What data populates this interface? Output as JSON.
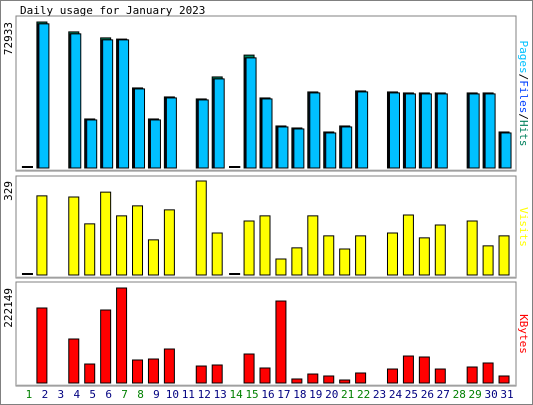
{
  "title": "Daily usage for January 2023",
  "chart_data": [
    {
      "type": "bar",
      "ylim": [
        0,
        72933
      ],
      "yticks": [
        72933
      ],
      "zero_marker": true,
      "separator": "/",
      "separator_color": "#000000",
      "series": [
        {
          "name": "Pages",
          "color": "#00c0ff",
          "values": [
            0,
            72000,
            null,
            67000,
            24000,
            64000,
            64000,
            39500,
            24000,
            35000,
            null,
            34000,
            44500,
            0,
            55000,
            34500,
            20500,
            19500,
            37500,
            17500,
            20500,
            38000,
            null,
            37500,
            37000,
            37000,
            37000,
            null,
            37000,
            37000,
            17500
          ]
        },
        {
          "name": "Files",
          "color": "#0040ff",
          "values": [
            0,
            72000,
            null,
            67000,
            24000,
            64000,
            64000,
            39500,
            24000,
            35000,
            null,
            34000,
            44500,
            0,
            55000,
            34500,
            20500,
            19500,
            37500,
            17500,
            20500,
            38000,
            null,
            37500,
            37000,
            37000,
            37000,
            null,
            37000,
            37000,
            17500
          ]
        },
        {
          "name": "Hits",
          "color": "#00805c",
          "values": [
            0,
            72933,
            null,
            68000,
            24500,
            65000,
            64400,
            40000,
            24500,
            35500,
            null,
            34500,
            45500,
            0,
            56400,
            35000,
            21000,
            20000,
            38000,
            18000,
            21000,
            38500,
            null,
            38000,
            37500,
            37500,
            37500,
            null,
            37500,
            37500,
            18000
          ]
        }
      ]
    },
    {
      "type": "bar",
      "ylim": [
        0,
        329
      ],
      "yticks": [
        329
      ],
      "zero_marker": true,
      "series": [
        {
          "name": "Visits",
          "color": "#ffff00",
          "values": [
            0,
            277,
            null,
            273,
            179,
            290,
            207,
            242,
            123,
            228,
            null,
            329,
            147,
            0,
            189,
            207,
            56,
            95,
            207,
            137,
            91,
            137,
            null,
            147,
            210,
            130,
            175,
            null,
            189,
            102,
            137
          ]
        }
      ]
    },
    {
      "type": "bar",
      "ylim": [
        0,
        222149
      ],
      "yticks": [
        222149
      ],
      "zero_marker": false,
      "categories": [
        "1",
        "2",
        "3",
        "4",
        "5",
        "6",
        "7",
        "8",
        "9",
        "10",
        "11",
        "12",
        "13",
        "14",
        "15",
        "16",
        "17",
        "18",
        "19",
        "20",
        "21",
        "22",
        "23",
        "24",
        "25",
        "26",
        "27",
        "28",
        "29",
        "30",
        "31"
      ],
      "category_colors": [
        "#008000",
        "#000080",
        "#000080",
        "#000080",
        "#000080",
        "#000080",
        "#008000",
        "#008000",
        "#000080",
        "#000080",
        "#000080",
        "#000080",
        "#000080",
        "#008000",
        "#008000",
        "#000080",
        "#000080",
        "#000080",
        "#000080",
        "#000080",
        "#008000",
        "#008000",
        "#000080",
        "#000080",
        "#000080",
        "#000080",
        "#000080",
        "#008000",
        "#008000",
        "#000080",
        "#000080"
      ],
      "series": [
        {
          "name": "KBytes",
          "color": "#ff0000",
          "values": [
            0,
            175400,
            null,
            102900,
            44400,
            170700,
            222149,
            53800,
            56100,
            79500,
            null,
            39700,
            42100,
            0,
            67800,
            35100,
            191700,
            9400,
            21000,
            16400,
            7000,
            23400,
            null,
            32700,
            63100,
            60800,
            32700,
            null,
            37400,
            46800,
            16400
          ]
        }
      ]
    }
  ]
}
